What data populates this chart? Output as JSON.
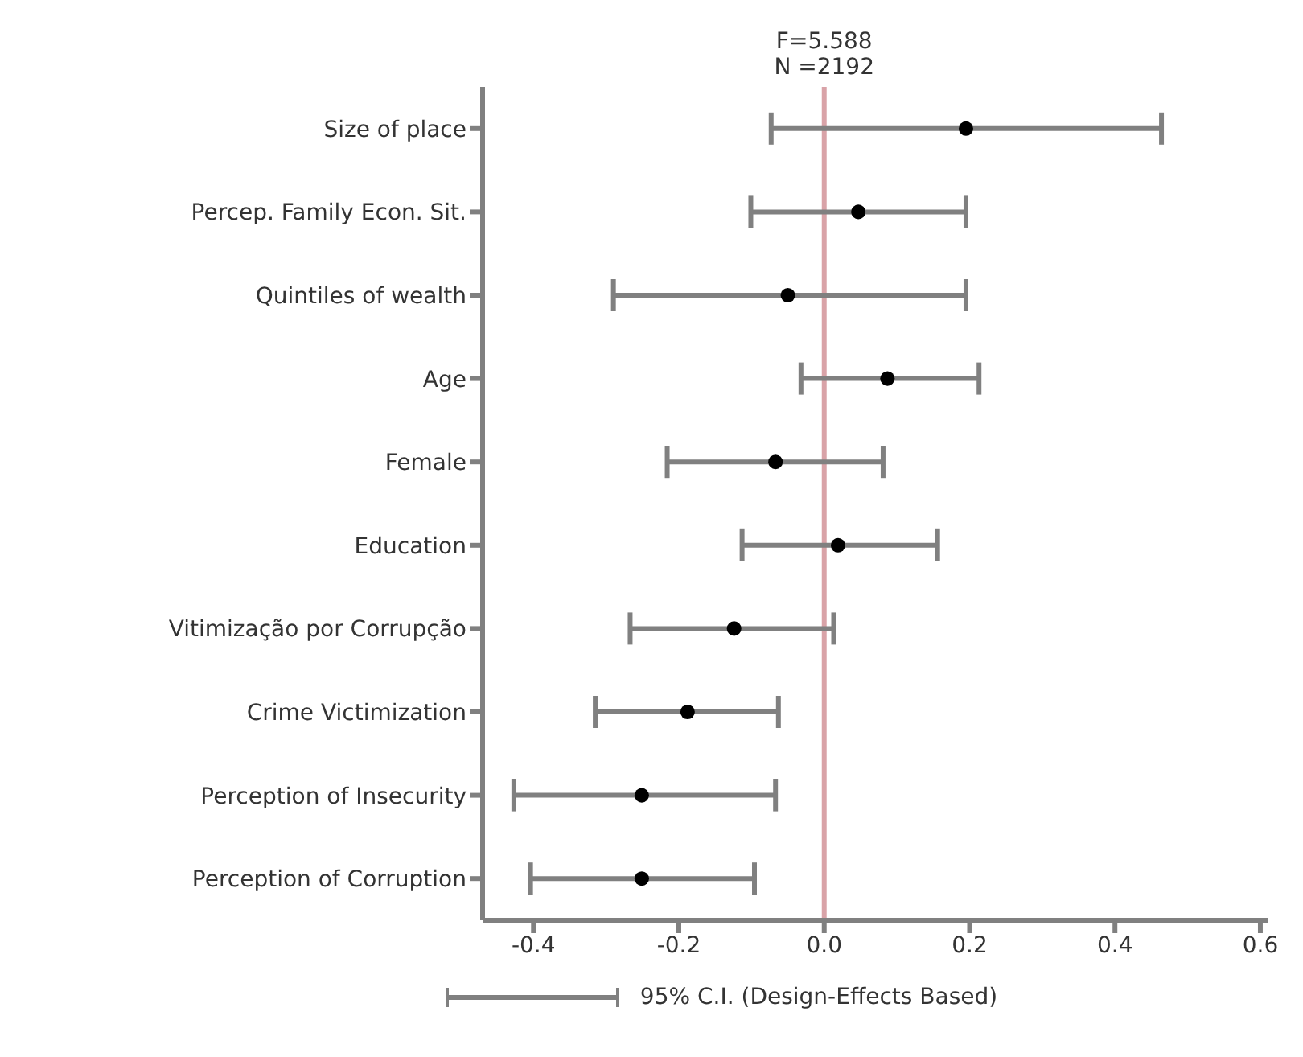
{
  "chart_data": {
    "type": "scatter",
    "categories": [
      "Size of place",
      "Percep. Family Econ. Sit.",
      "Quintiles of wealth",
      "Age",
      "Female",
      "Education",
      "Vitimização por Corrupção",
      "Crime Victimization",
      "Perception of Insecurity",
      "Perception of Corruption"
    ],
    "series": [
      {
        "name": "95% C.I. (Design-Effects Based)",
        "color": "#000000",
        "values": [
          0.195,
          0.047,
          -0.05,
          0.087,
          -0.067,
          0.019,
          -0.124,
          -0.188,
          -0.251,
          -0.251
        ],
        "errors": [
          [
            -0.073,
            0.464
          ],
          [
            -0.101,
            0.195
          ],
          [
            -0.29,
            0.195
          ],
          [
            -0.032,
            0.213
          ],
          [
            -0.216,
            0.081
          ],
          [
            -0.113,
            0.156
          ],
          [
            -0.267,
            0.013
          ],
          [
            -0.315,
            -0.063
          ],
          [
            -0.427,
            -0.067
          ],
          [
            -0.404,
            -0.096
          ]
        ]
      }
    ],
    "orientation": "horizontal",
    "xlim": [
      -0.47,
      0.61
    ],
    "xticks": [
      {
        "value": -0.4,
        "label": "-0.4"
      },
      {
        "value": -0.2,
        "label": "-0.2"
      },
      {
        "value": 0,
        "label": "0.0"
      },
      {
        "value": 0.2,
        "label": "0.2"
      },
      {
        "value": 0.4,
        "label": "0.4"
      },
      {
        "value": 0.6,
        "label": "0.6"
      }
    ],
    "ref_lines": [
      {
        "axis": "x",
        "value": 0,
        "color": "#d9a3a8"
      }
    ],
    "annotations": [
      "F=5.588",
      "N =2192"
    ],
    "marker": "circle",
    "legend": "bottom",
    "grid": false
  }
}
